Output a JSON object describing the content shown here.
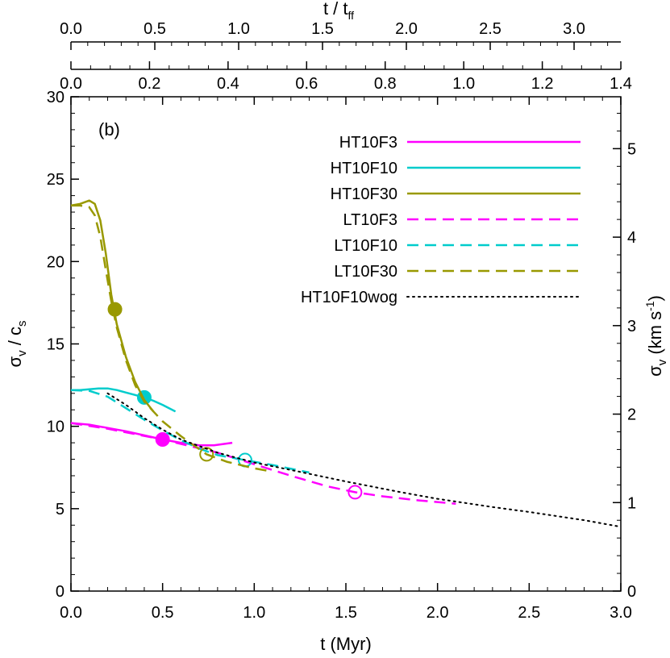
{
  "chart_data": {
    "type": "line",
    "panel_label": "(b)",
    "xlabel": "t (Myr)",
    "ylabel_left": {
      "main": "σ",
      "sub1": "v",
      "mid": " / c",
      "sub2": "s"
    },
    "ylabel_right": {
      "main": "σ",
      "sub": "v",
      "unit_pre": " (km s",
      "unit_sup": "-1",
      "unit_post": ")"
    },
    "top_label": {
      "main": "t / t",
      "sub": "ff"
    },
    "xlim": [
      0,
      3.0
    ],
    "ylim": [
      0,
      30
    ],
    "x_ticks": [
      "0.0",
      "0.5",
      "1.0",
      "1.5",
      "2.0",
      "2.5",
      "3.0"
    ],
    "y_ticks": [
      "0",
      "5",
      "10",
      "15",
      "20",
      "25",
      "30"
    ],
    "y2_ticks": [
      "0",
      "1",
      "2",
      "3",
      "4",
      "5"
    ],
    "y2_per_unit": 5.37,
    "top_axis1_ticks": [
      "0.0",
      "0.2",
      "0.4",
      "0.6",
      "0.8",
      "1.0",
      "1.2",
      "1.4"
    ],
    "top_axis1_xscale": 2.143,
    "top_axis2_ticks": [
      "0.0",
      "0.5",
      "1.0",
      "1.5",
      "2.0",
      "2.5",
      "3.0"
    ],
    "top_axis2_xscale": 0.915,
    "series": [
      {
        "name": "HT10F3",
        "color": "#ff00ff",
        "style": "solid",
        "points": [
          [
            0,
            10.2
          ],
          [
            0.1,
            10.1
          ],
          [
            0.2,
            9.9
          ],
          [
            0.3,
            9.7
          ],
          [
            0.4,
            9.45
          ],
          [
            0.5,
            9.2
          ],
          [
            0.6,
            9.0
          ],
          [
            0.7,
            8.85
          ],
          [
            0.78,
            8.85
          ],
          [
            0.88,
            9.0
          ]
        ],
        "marker": [
          0.5,
          9.2
        ],
        "marker_filled": true
      },
      {
        "name": "HT10F10",
        "color": "#00cccc",
        "style": "solid",
        "points": [
          [
            0,
            12.2
          ],
          [
            0.05,
            12.2
          ],
          [
            0.1,
            12.25
          ],
          [
            0.15,
            12.3
          ],
          [
            0.2,
            12.3
          ],
          [
            0.25,
            12.2
          ],
          [
            0.3,
            12.05
          ],
          [
            0.35,
            11.9
          ],
          [
            0.4,
            11.75
          ],
          [
            0.45,
            11.55
          ],
          [
            0.5,
            11.3
          ],
          [
            0.57,
            10.9
          ]
        ],
        "marker": [
          0.4,
          11.75
        ],
        "marker_filled": true
      },
      {
        "name": "HT10F30",
        "color": "#999900",
        "style": "solid",
        "points": [
          [
            0,
            23.4
          ],
          [
            0.05,
            23.5
          ],
          [
            0.1,
            23.7
          ],
          [
            0.13,
            23.5
          ],
          [
            0.16,
            22.5
          ],
          [
            0.19,
            20.5
          ],
          [
            0.22,
            18.0
          ],
          [
            0.25,
            16.2
          ],
          [
            0.3,
            14.2
          ],
          [
            0.35,
            12.7
          ],
          [
            0.4,
            11.6
          ],
          [
            0.45,
            10.9
          ]
        ],
        "marker": [
          0.24,
          17.1
        ],
        "marker_filled": true
      },
      {
        "name": "LT10F3",
        "color": "#ff00ff",
        "style": "dashed",
        "points": [
          [
            0,
            10.2
          ],
          [
            0.2,
            9.85
          ],
          [
            0.5,
            9.2
          ],
          [
            0.8,
            8.4
          ],
          [
            1.0,
            7.7
          ],
          [
            1.2,
            7.0
          ],
          [
            1.4,
            6.35
          ],
          [
            1.55,
            6.0
          ],
          [
            1.7,
            5.75
          ],
          [
            1.9,
            5.5
          ],
          [
            2.1,
            5.3
          ]
        ],
        "marker": [
          1.55,
          6.0
        ],
        "marker_filled": false
      },
      {
        "name": "LT10F10",
        "color": "#00cccc",
        "style": "dashed",
        "points": [
          [
            0,
            12.2
          ],
          [
            0.1,
            12.15
          ],
          [
            0.2,
            11.8
          ],
          [
            0.3,
            11.1
          ],
          [
            0.4,
            10.4
          ],
          [
            0.5,
            9.75
          ],
          [
            0.6,
            9.15
          ],
          [
            0.7,
            8.65
          ],
          [
            0.8,
            8.25
          ],
          [
            0.95,
            7.95
          ],
          [
            1.1,
            7.65
          ],
          [
            1.3,
            7.2
          ]
        ],
        "marker": [
          0.95,
          7.95
        ],
        "marker_filled": false
      },
      {
        "name": "LT10F30",
        "color": "#999900",
        "style": "dashed",
        "points": [
          [
            0,
            23.4
          ],
          [
            0.05,
            23.4
          ],
          [
            0.1,
            23.3
          ],
          [
            0.13,
            22.8
          ],
          [
            0.16,
            21.5
          ],
          [
            0.19,
            19.5
          ],
          [
            0.22,
            17.6
          ],
          [
            0.25,
            16.0
          ],
          [
            0.3,
            14.0
          ],
          [
            0.35,
            12.5
          ],
          [
            0.4,
            11.5
          ],
          [
            0.45,
            10.9
          ],
          [
            0.5,
            10.3
          ],
          [
            0.6,
            9.4
          ],
          [
            0.74,
            8.3
          ],
          [
            0.85,
            7.85
          ],
          [
            1.0,
            7.45
          ],
          [
            1.1,
            7.25
          ]
        ],
        "marker": [
          0.74,
          8.3
        ],
        "marker_filled": false
      },
      {
        "name": "HT10F10wog",
        "color": "#000000",
        "style": "dotted",
        "points": [
          [
            0.2,
            12.0
          ],
          [
            0.3,
            11.3
          ],
          [
            0.4,
            10.5
          ],
          [
            0.5,
            9.8
          ],
          [
            0.6,
            9.2
          ],
          [
            0.8,
            8.4
          ],
          [
            1.0,
            7.8
          ],
          [
            1.2,
            7.35
          ],
          [
            1.5,
            6.65
          ],
          [
            1.8,
            6.0
          ],
          [
            2.0,
            5.6
          ],
          [
            2.3,
            5.1
          ],
          [
            2.5,
            4.8
          ],
          [
            2.8,
            4.3
          ],
          [
            3.0,
            3.9
          ]
        ],
        "marker": null,
        "marker_filled": false
      }
    ]
  }
}
